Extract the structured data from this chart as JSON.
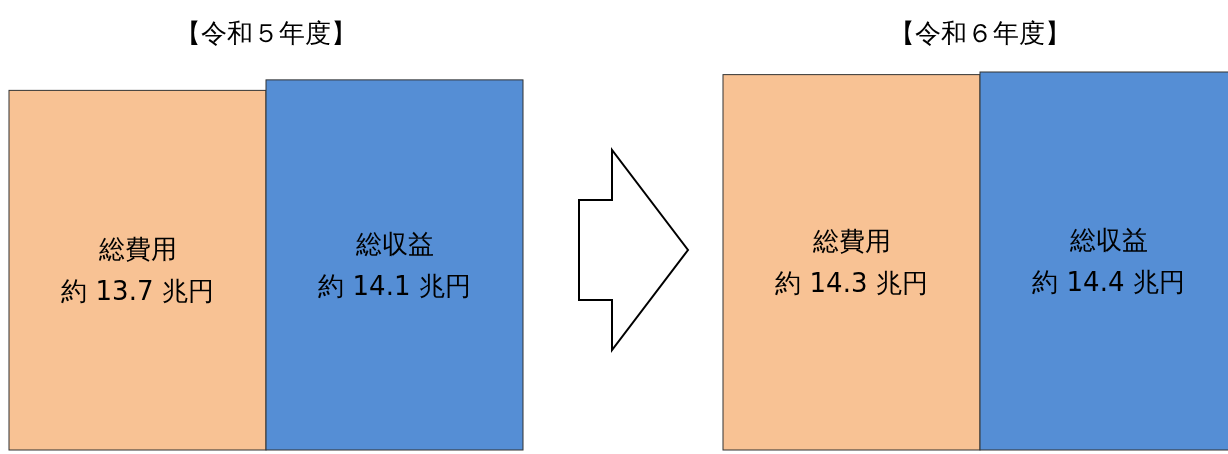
{
  "chart_data": [
    {
      "type": "bar",
      "title": "【令和５年度】",
      "categories": [
        "総費用",
        "総収益"
      ],
      "values": [
        13.7,
        14.1
      ],
      "colors": [
        "#f8c294",
        "#558ed5"
      ],
      "value_labels": [
        "約 13.7 兆円",
        "約 14.1 兆円"
      ],
      "relative": false
    },
    {
      "type": "bar",
      "title": "【令和６年度】",
      "categories": [
        "総費用",
        "総収益"
      ],
      "values": [
        14.3,
        14.4
      ],
      "colors": [
        "#f8c294",
        "#558ed5"
      ],
      "value_labels": [
        "約 14.3 兆円",
        "約 14.4 兆円"
      ],
      "relative": false
    }
  ]
}
